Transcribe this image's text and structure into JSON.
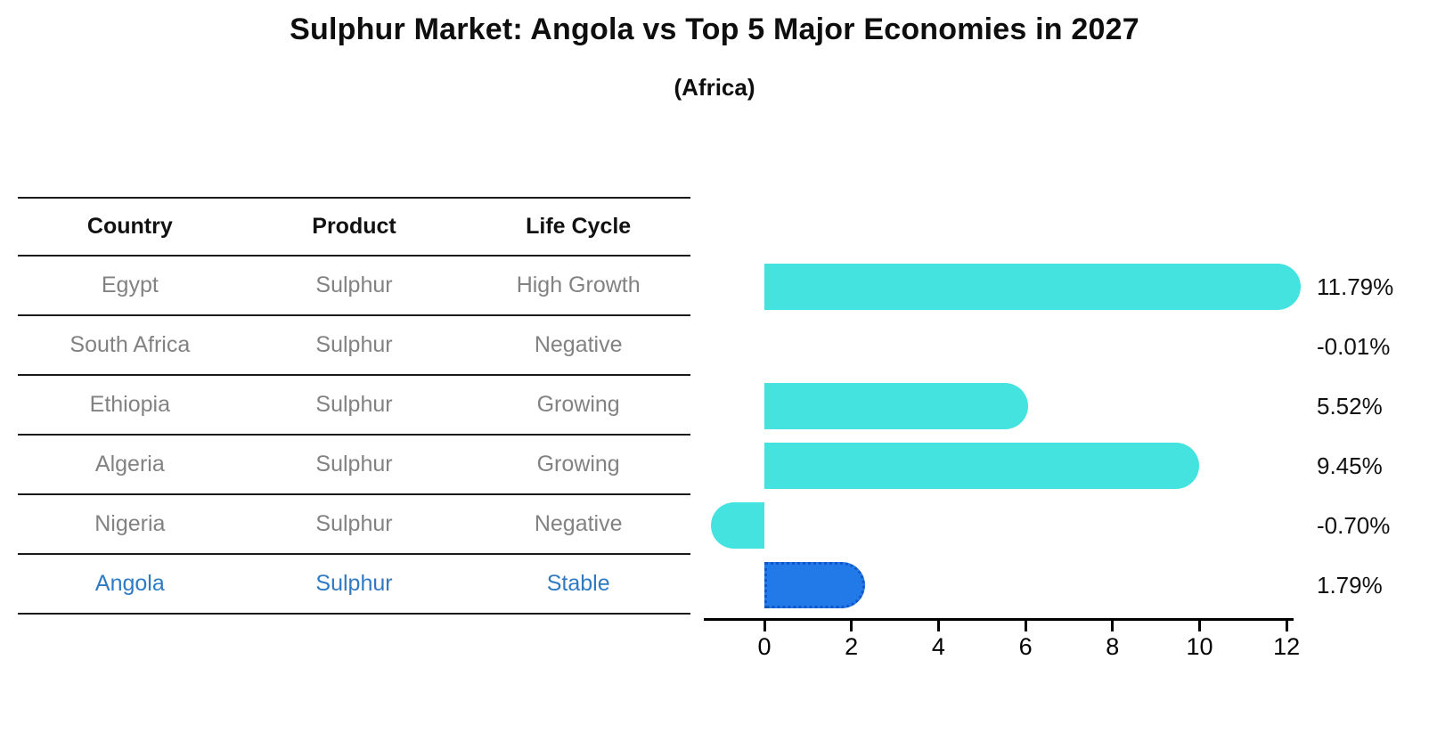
{
  "title": "Sulphur Market: Angola vs Top 5 Major Economies in 2027",
  "subtitle": "(Africa)",
  "table": {
    "headers": [
      "Country",
      "Product",
      "Life Cycle"
    ],
    "rows": [
      {
        "country": "Egypt",
        "product": "Sulphur",
        "life_cycle": "High Growth",
        "highlight": false
      },
      {
        "country": "South Africa",
        "product": "Sulphur",
        "life_cycle": "Negative",
        "highlight": false
      },
      {
        "country": "Ethiopia",
        "product": "Sulphur",
        "life_cycle": "Growing",
        "highlight": false
      },
      {
        "country": "Algeria",
        "product": "Sulphur",
        "life_cycle": "Growing",
        "highlight": false
      },
      {
        "country": "Nigeria",
        "product": "Sulphur",
        "life_cycle": "Negative",
        "highlight": false
      },
      {
        "country": "Angola",
        "product": "Sulphur",
        "life_cycle": "Stable",
        "highlight": true
      }
    ]
  },
  "chart_data": {
    "type": "bar",
    "orientation": "horizontal",
    "title": "Sulphur Market: Angola vs Top 5 Major Economies in 2027",
    "subtitle": "(Africa)",
    "categories": [
      "Egypt",
      "South Africa",
      "Ethiopia",
      "Algeria",
      "Nigeria",
      "Angola"
    ],
    "values": [
      11.79,
      -0.01,
      5.52,
      9.45,
      -0.7,
      1.79
    ],
    "value_labels": [
      "11.79%",
      "-0.01%",
      "5.52%",
      "9.45%",
      "-0.70%",
      "1.79%"
    ],
    "unit": "percent",
    "xticks": [
      0,
      2,
      4,
      6,
      8,
      10,
      12
    ],
    "xtick_labels": [
      "0",
      "2",
      "4",
      "6",
      "8",
      "10",
      "12"
    ],
    "xlim": [
      -1.4,
      12.2
    ],
    "highlight_index": 5,
    "grid": false,
    "legend": false
  },
  "colors": {
    "bar": "#45E3E0",
    "highlight_bar": "#227AE8",
    "highlight_bar_border": "#1256C9",
    "table_text": "#828282",
    "header_text": "#111111",
    "highlight_text": "#2E7BC4",
    "value_text": "#111111",
    "line": "#1a1a1a"
  }
}
